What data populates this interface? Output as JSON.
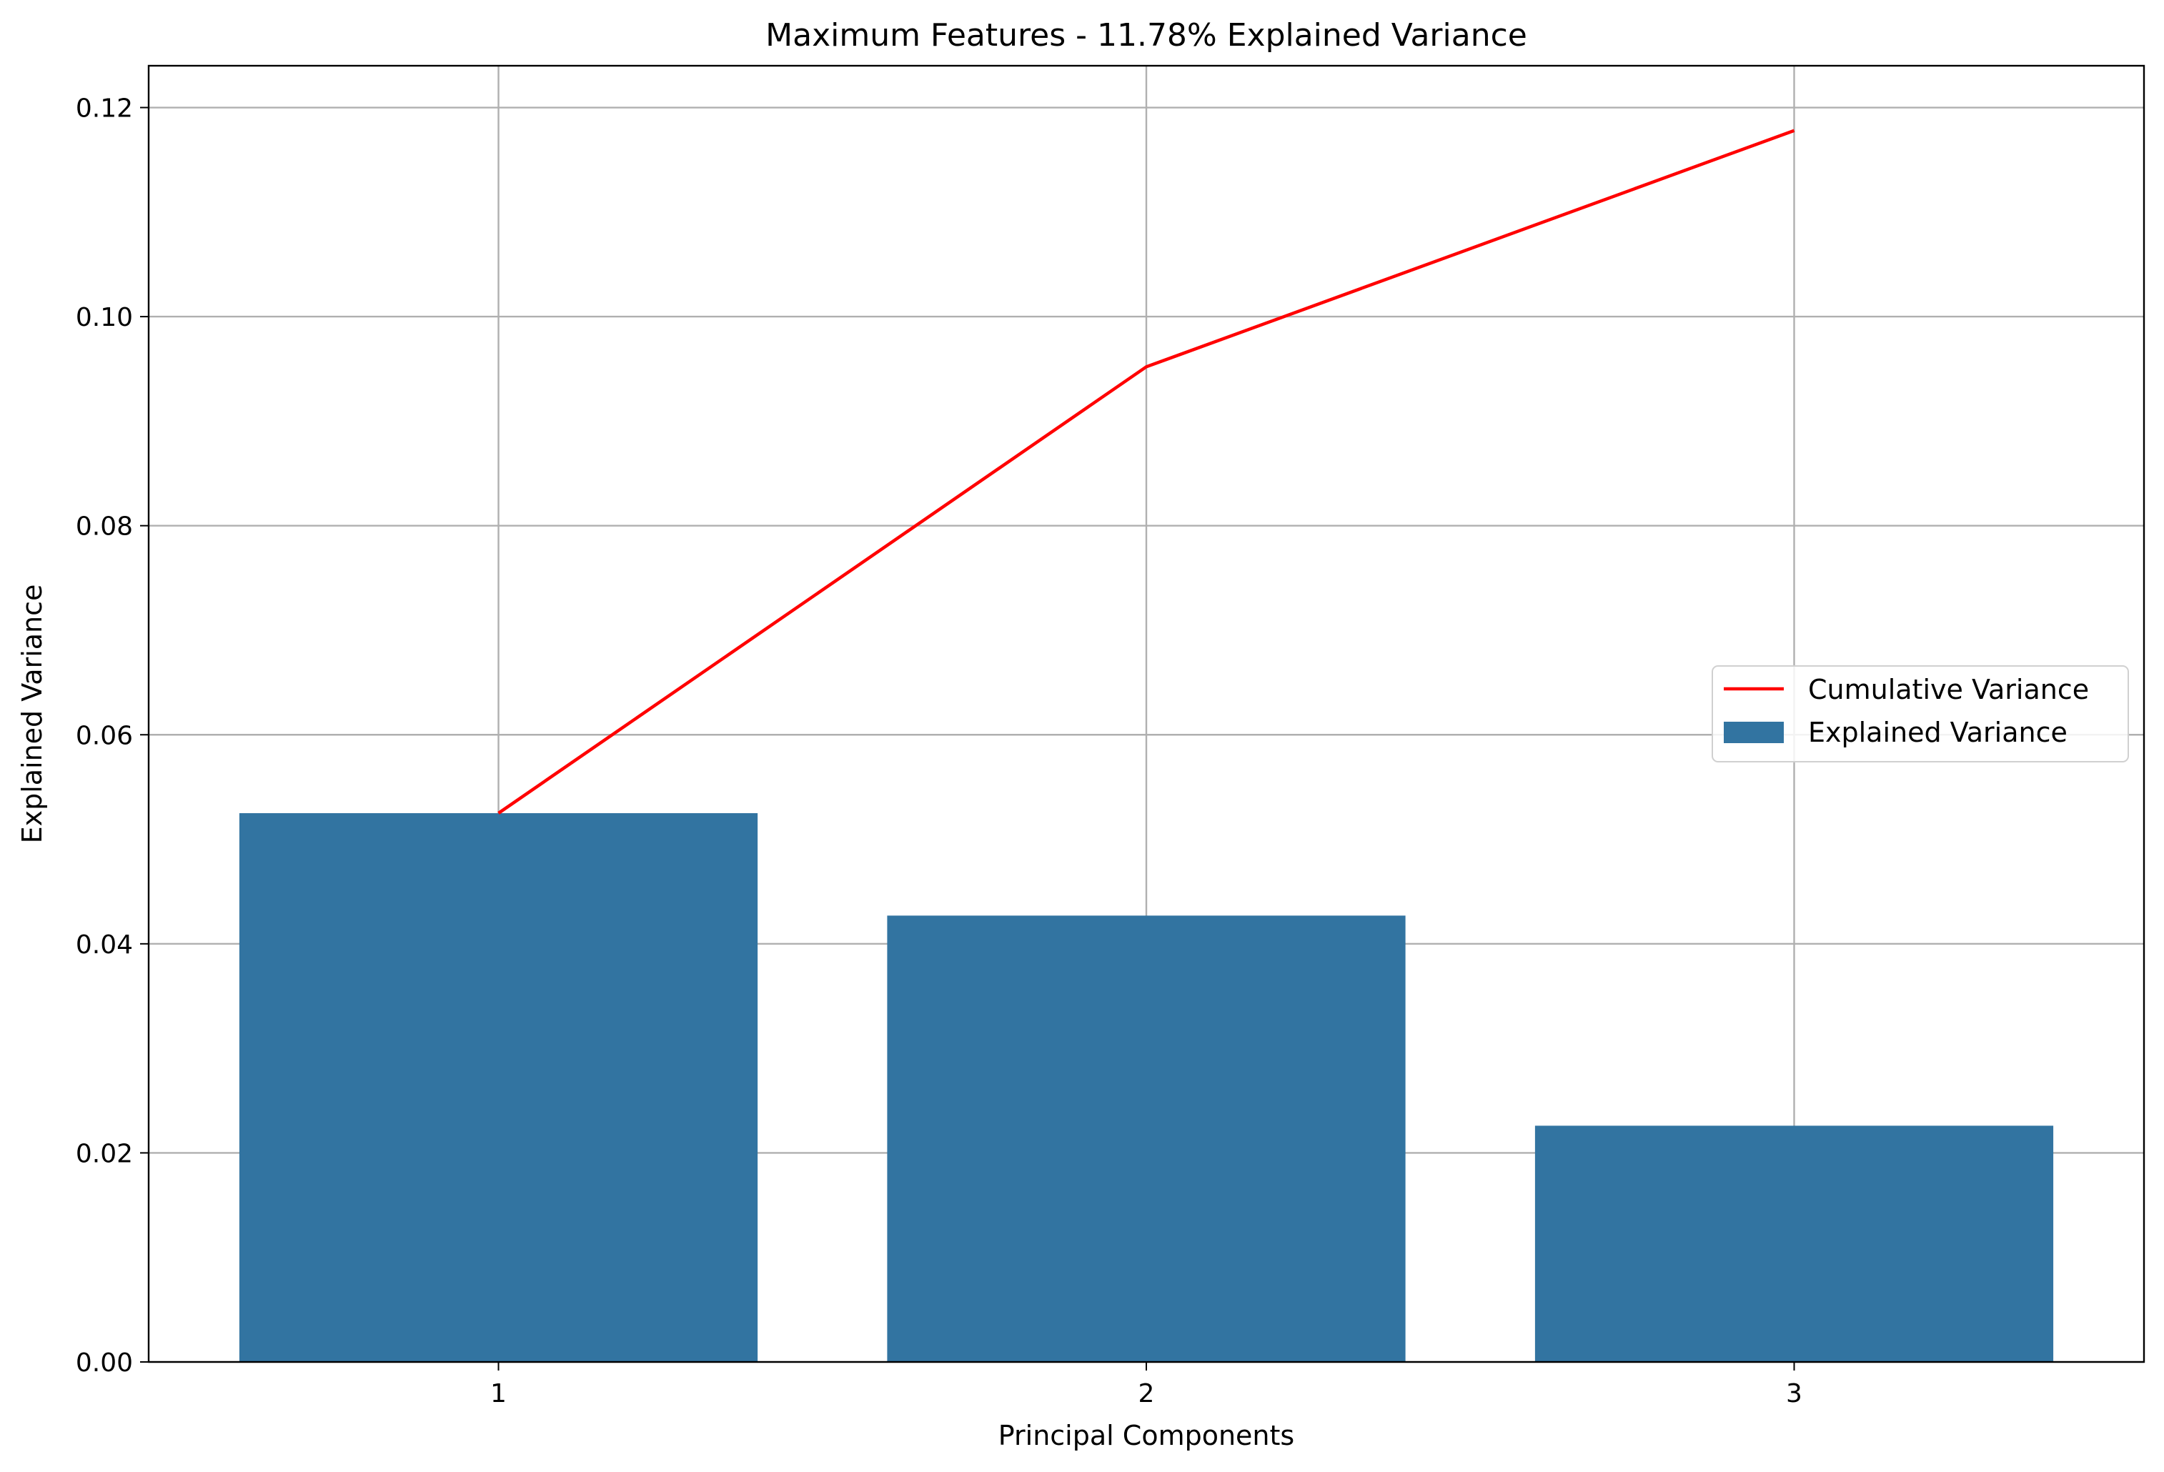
{
  "chart_data": {
    "type": "bar",
    "title": "Maximum Features - 11.78% Explained Variance",
    "xlabel": "Principal Components",
    "ylabel": "Explained Variance",
    "categories": [
      "1",
      "2",
      "3"
    ],
    "series": [
      {
        "name": "Explained Variance",
        "type": "bar",
        "color": "#3274a1",
        "values": [
          0.0525,
          0.0427,
          0.0226
        ]
      },
      {
        "name": "Cumulative Variance",
        "type": "line",
        "color": "#ff0000",
        "values": [
          0.0525,
          0.0952,
          0.1178
        ]
      }
    ],
    "ylim": [
      0.0,
      0.124
    ],
    "yticks": [
      0.0,
      0.02,
      0.04,
      0.06,
      0.08,
      0.1,
      0.12
    ],
    "ytick_labels": [
      "0.00",
      "0.02",
      "0.04",
      "0.06",
      "0.08",
      "0.10",
      "0.12"
    ],
    "grid": true,
    "legend": {
      "placement": "center-right",
      "entries": [
        "Cumulative Variance",
        "Explained Variance"
      ]
    }
  }
}
